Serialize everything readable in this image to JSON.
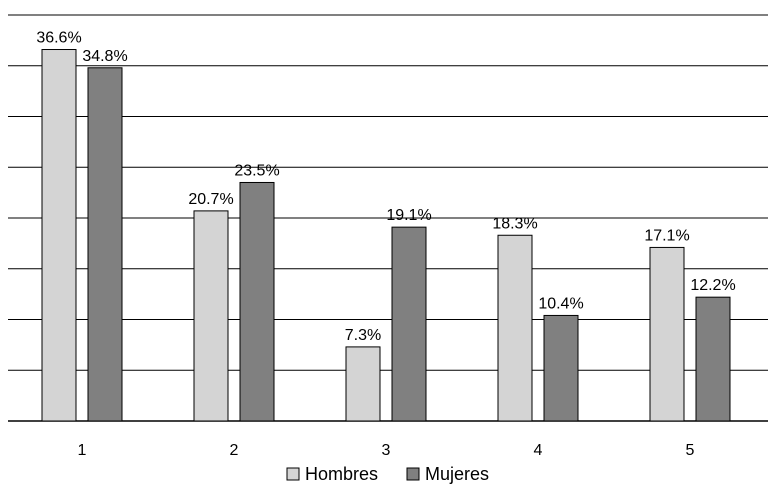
{
  "chart_data": {
    "type": "bar",
    "title": "",
    "xlabel": "",
    "ylabel": "",
    "categories": [
      "1",
      "2",
      "3",
      "4",
      "5"
    ],
    "series": [
      {
        "name": "Hombres",
        "values": [
          36.6,
          20.7,
          7.3,
          18.3,
          17.1
        ],
        "color": "#d4d4d4"
      },
      {
        "name": "Mujeres",
        "values": [
          34.8,
          23.5,
          19.1,
          10.4,
          12.2
        ],
        "color": "#808080"
      }
    ],
    "data_labels": [
      [
        "36.6%",
        "20.7%",
        "7.3%",
        "18.3%",
        "17.1%"
      ],
      [
        "34.8%",
        "23.5%",
        "19.1%",
        "10.4%",
        "12.2%"
      ]
    ],
    "ylim": [
      0,
      40
    ],
    "y_tick_labels": "none",
    "grid": true,
    "legend": "bottom"
  }
}
